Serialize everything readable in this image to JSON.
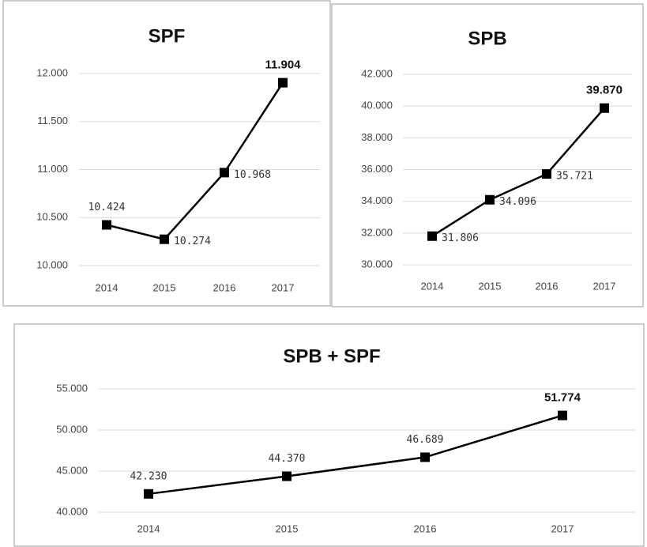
{
  "chart_data": [
    {
      "type": "line",
      "title": "SPF",
      "categories": [
        "2014",
        "2015",
        "2016",
        "2017"
      ],
      "values": [
        10424,
        10274,
        10968,
        11904
      ],
      "value_labels": [
        "10.424",
        "10.274",
        "10.968",
        "11.904"
      ],
      "color": "#000000",
      "ylim": [
        10000,
        12000
      ],
      "yticks": [
        {
          "value": 10000,
          "label": "10.000"
        },
        {
          "value": 10500,
          "label": "10.500"
        },
        {
          "value": 11000,
          "label": "11.000"
        },
        {
          "value": 11500,
          "label": "11.500"
        },
        {
          "value": 12000,
          "label": "12.000"
        }
      ],
      "grid": true
    },
    {
      "type": "line",
      "title": "SPB",
      "categories": [
        "2014",
        "2015",
        "2016",
        "2017"
      ],
      "values": [
        31806,
        34096,
        35721,
        39870
      ],
      "value_labels": [
        "31.806",
        "34.096",
        "35.721",
        "39.870"
      ],
      "color": "#000000",
      "ylim": [
        30000,
        42000
      ],
      "yticks": [
        {
          "value": 30000,
          "label": "30.000"
        },
        {
          "value": 32000,
          "label": "32.000"
        },
        {
          "value": 34000,
          "label": "34.000"
        },
        {
          "value": 36000,
          "label": "36.000"
        },
        {
          "value": 38000,
          "label": "38.000"
        },
        {
          "value": 40000,
          "label": "40.000"
        },
        {
          "value": 42000,
          "label": "42.000"
        }
      ],
      "grid": true
    },
    {
      "type": "line",
      "title": "SPB + SPF",
      "categories": [
        "2014",
        "2015",
        "2016",
        "2017"
      ],
      "values": [
        42230,
        44370,
        46689,
        51774
      ],
      "value_labels": [
        "42.230",
        "44.370",
        "46.689",
        "51.774"
      ],
      "color": "#000000",
      "ylim": [
        40000,
        55000
      ],
      "yticks": [
        {
          "value": 40000,
          "label": "40.000"
        },
        {
          "value": 45000,
          "label": "45.000"
        },
        {
          "value": 50000,
          "label": "50.000"
        },
        {
          "value": 55000,
          "label": "55.000"
        }
      ],
      "grid": true
    }
  ]
}
